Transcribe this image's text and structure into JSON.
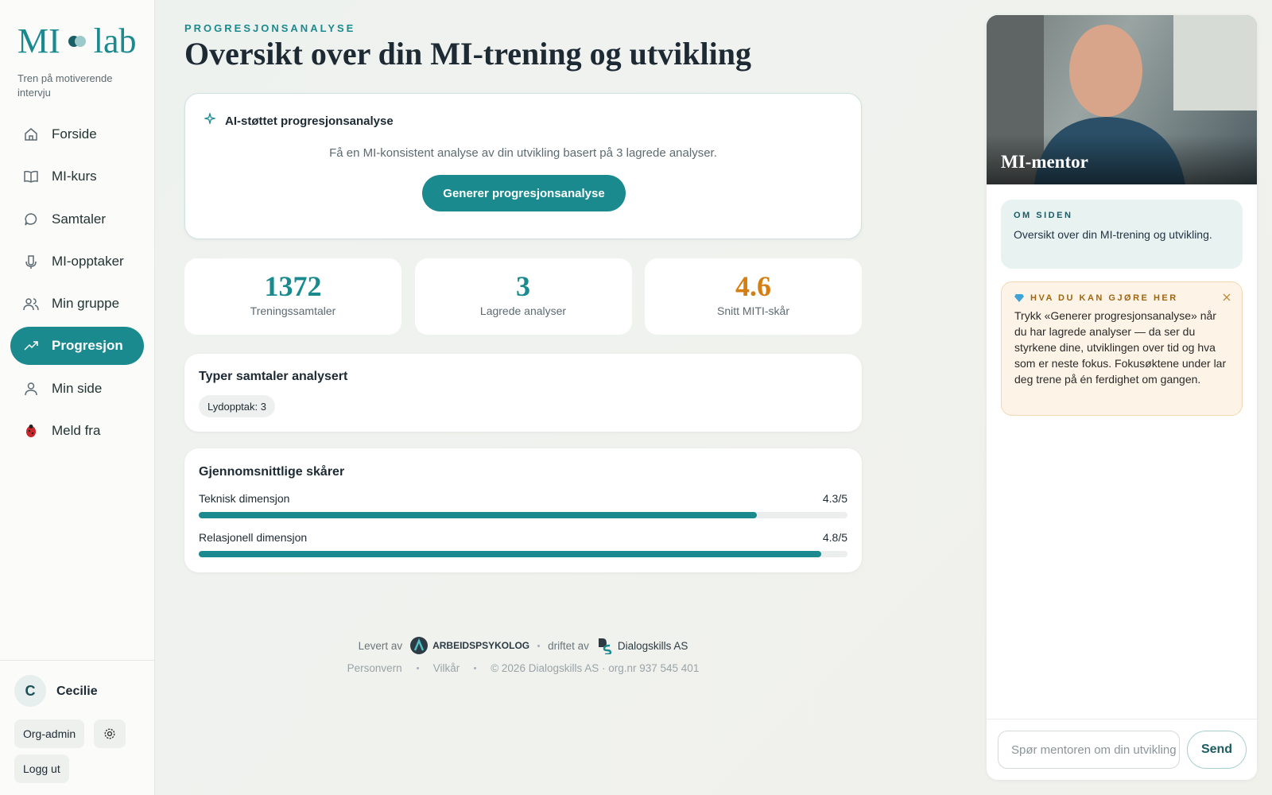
{
  "sidebar": {
    "logo": {
      "left": "MI",
      "right": "lab"
    },
    "tagline": "Tren på motiverende intervju",
    "nav": [
      "Forside",
      "MI-kurs",
      "Samtaler",
      "MI-opptaker",
      "Min gruppe",
      "Progresjon",
      "Min side",
      "Meld fra"
    ],
    "user": {
      "initial": "C",
      "name": "Cecilie"
    },
    "org_admin": "Org-admin",
    "logout": "Logg ut"
  },
  "header": {
    "eyebrow": "PROGRESJONSANALYSE",
    "title": "Oversikt over din MI-trening og utvikling"
  },
  "ai_card": {
    "title": "AI-støttet progresjonsanalyse",
    "description": "Få en MI-konsistent analyse av din utvikling basert på 3 lagrede analyser.",
    "button": "Generer progresjonsanalyse"
  },
  "stats": [
    {
      "value": 1372,
      "label": "Treningssamtaler"
    },
    {
      "value": 3,
      "label": "Lagrede analyser"
    },
    {
      "value": 4.6,
      "label": "Snitt MITI-skår"
    }
  ],
  "types_card": {
    "title": "Typer samtaler analysert",
    "chip": "Lydopptak: 3"
  },
  "scores_card": {
    "title": "Gjennomsnittlige skårer",
    "rows": [
      {
        "name": "Teknisk dimensjon",
        "value": 4.3,
        "label": "4.3/5",
        "max": 5
      },
      {
        "name": "Relasjonell dimensjon",
        "value": 4.8,
        "label": "4.8/5",
        "max": 5
      }
    ]
  },
  "footer": {
    "delivered_by": "Levert av",
    "provider": "ARBEIDSPSYKOLOG",
    "operated_by": "driftet av",
    "operator": "Dialogskills AS",
    "links": [
      "Personvern",
      "Vilkår",
      "© 2026 Dialogskills AS · org.nr 937 545 401"
    ]
  },
  "mentor": {
    "name": "MI-mentor",
    "about": {
      "label": "OM SIDEN",
      "text": "Oversikt over din MI-trening og utvikling."
    },
    "tips": {
      "label": "HVA DU KAN GJØRE HER",
      "text": "Trykk «Generer progresjonsanalyse» når du har lagrede analyser — da ser du styrkene dine, utviklingen over tid og hva som er neste fokus. Fokusøktene under lar deg trene på én ferdighet om gangen."
    },
    "input_placeholder": "Spør mentoren om din utvikling",
    "send": "Send"
  }
}
